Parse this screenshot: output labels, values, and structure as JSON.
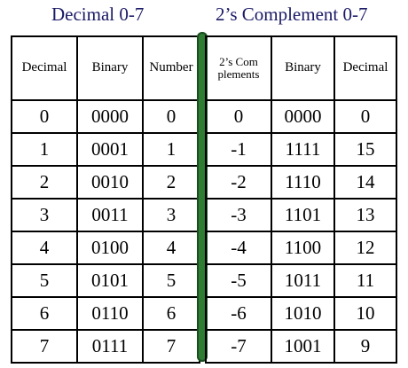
{
  "titles": {
    "left": "Decimal 0-7",
    "right": "2’s Complement 0-7"
  },
  "left_table": {
    "headers": [
      "Decimal",
      "Binary",
      "Number"
    ],
    "rows": [
      [
        "0",
        "0000",
        "0"
      ],
      [
        "1",
        "0001",
        "1"
      ],
      [
        "2",
        "0010",
        "2"
      ],
      [
        "3",
        "0011",
        "3"
      ],
      [
        "4",
        "0100",
        "4"
      ],
      [
        "5",
        "0101",
        "5"
      ],
      [
        "6",
        "0110",
        "6"
      ],
      [
        "7",
        "0111",
        "7"
      ]
    ]
  },
  "right_table": {
    "headers": [
      "2’s Com plements",
      "Binary",
      "Decimal"
    ],
    "rows": [
      [
        "0",
        "0000",
        "0"
      ],
      [
        "-1",
        "1111",
        "15"
      ],
      [
        "-2",
        "1110",
        "14"
      ],
      [
        "-3",
        "1101",
        "13"
      ],
      [
        "-4",
        "1100",
        "12"
      ],
      [
        "-5",
        "1011",
        "11"
      ],
      [
        "-6",
        "1010",
        "10"
      ],
      [
        "-7",
        "1001",
        "9"
      ]
    ]
  },
  "colors": {
    "title": "#1a1a66",
    "divider": "#2e7d32"
  }
}
